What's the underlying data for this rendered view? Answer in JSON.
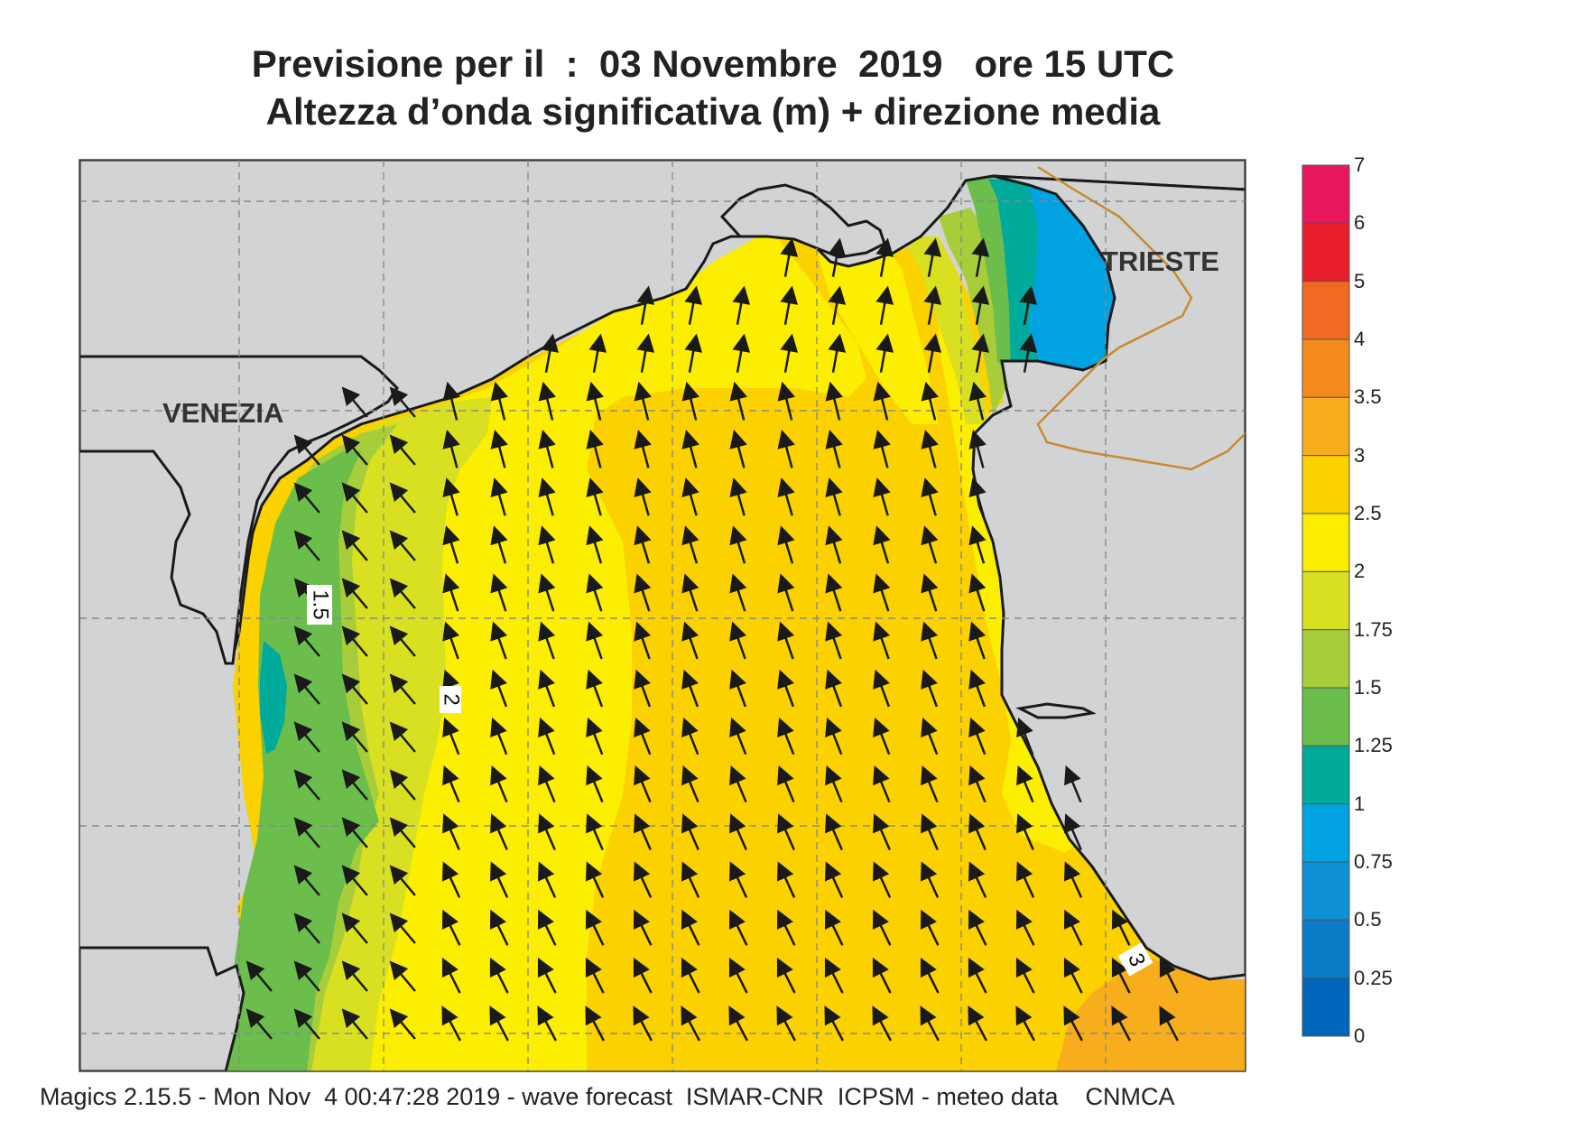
{
  "title": {
    "line1": "Previsione per il  :  03 Novembre  2019   ore 15 UTC",
    "line2": "Altezza d’onda significativa (m) + direzione media"
  },
  "footer": "Magics 2.15.5 - Mon Nov  4 00:47:28 2019 - wave forecast  ISMAR-CNR  ICPSM - meteo data    CNMCA",
  "cities": [
    {
      "name": "VENEZIA"
    },
    {
      "name": "TRIESTE"
    }
  ],
  "contour_labels": [
    "1.5",
    "2",
    "3"
  ],
  "legend": {
    "levels": [
      {
        "value": "7",
        "color": "#e8175d"
      },
      {
        "value": "6",
        "color": "#e81e2a"
      },
      {
        "value": "5",
        "color": "#f06a23"
      },
      {
        "value": "4",
        "color": "#f48a1c"
      },
      {
        "value": "3.5",
        "color": "#f8ad1c"
      },
      {
        "value": "3",
        "color": "#fbd100"
      },
      {
        "value": "2.5",
        "color": "#fbee00"
      },
      {
        "value": "2",
        "color": "#d9e021"
      },
      {
        "value": "1.75",
        "color": "#a8cd3a"
      },
      {
        "value": "1.5",
        "color": "#6bbd4c"
      },
      {
        "value": "1.25",
        "color": "#00ab9b"
      },
      {
        "value": "1",
        "color": "#00a2e1"
      },
      {
        "value": "0.75",
        "color": "#0e8fd6"
      },
      {
        "value": "0.5",
        "color": "#0a7cc8"
      },
      {
        "value": "0.25",
        "color": "#0066bb"
      },
      {
        "value": "0",
        "color": ""
      }
    ]
  },
  "colors": {
    "land": "#d2d3d4",
    "coast": "#1a1a1a",
    "border": "#c98a2e",
    "grid": "#8a8a8a",
    "arrow": "#1a1a1a"
  }
}
